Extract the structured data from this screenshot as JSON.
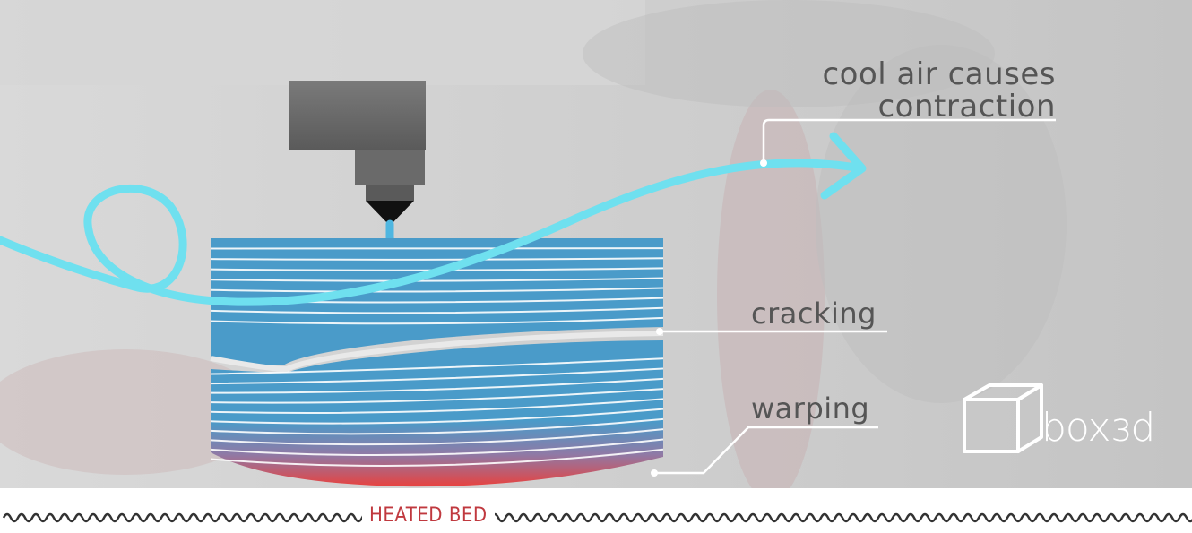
{
  "labels": {
    "cool_air_line1": "cool air causes",
    "cool_air_line2": "contraction",
    "cracking": "cracking",
    "warping": "warping"
  },
  "bed": {
    "label": "HEATED BED"
  },
  "logo": {
    "text": "boxɜd"
  },
  "colors": {
    "background": "#cfcfcf",
    "air_stream": "#6fe0ef",
    "layer_blue": "#4a9bc9",
    "layer_heat": "#e8423f",
    "bed_wave": "#333333",
    "bed_text": "#c0393f",
    "nozzle_dark": "#4a4a4a"
  },
  "print": {
    "upper_layers": 9,
    "lower_layers": 11
  }
}
